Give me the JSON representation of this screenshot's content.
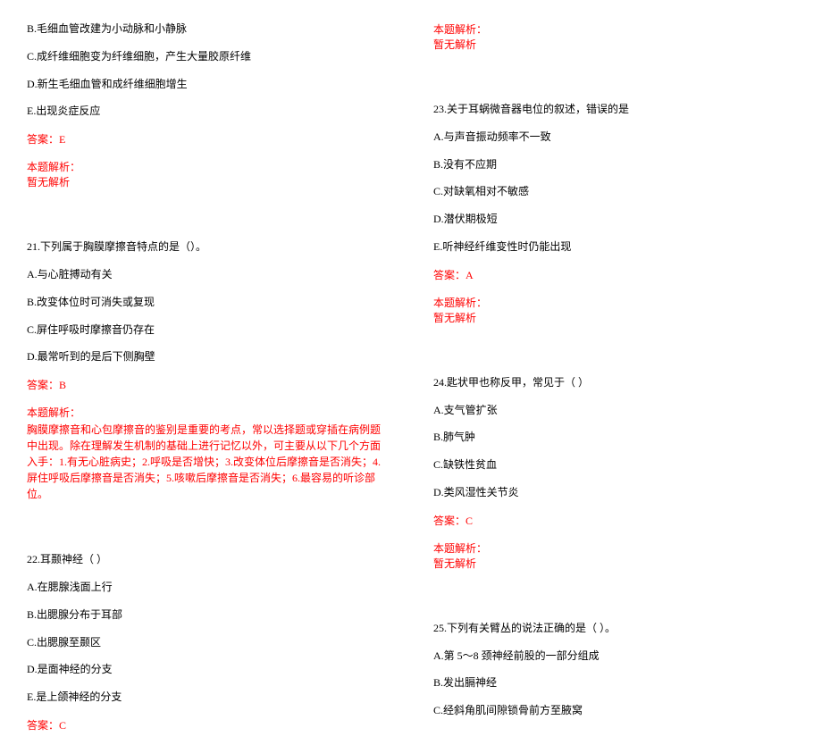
{
  "colors": {
    "text": "#000000",
    "answer": "#ff0000",
    "background": "#ffffff"
  },
  "typography": {
    "fontSize": 12,
    "fontFamily": "SimSun"
  },
  "left": {
    "q20_opts": {
      "b": "B.毛细血管改建为小动脉和小静脉",
      "c": "C.成纤维细胞变为纤维细胞，产生大量胶原纤维",
      "d": "D.新生毛细血管和成纤维细胞增生",
      "e": "E.出现炎症反应"
    },
    "q20_answer": "答案：E",
    "q20_explain_label": "本题解析：",
    "q20_explain_none": "暂无解析",
    "q21": {
      "stem": "21.下列属于胸膜摩擦音特点的是（）。",
      "a": "A.与心脏搏动有关",
      "b": "B.改变体位时可消失或复现",
      "c": "C.屏住呼吸时摩擦音仍存在",
      "d": "D.最常听到的是后下侧胸壁",
      "answer": "答案：B",
      "explain_label": "本题解析：",
      "explain_text": "胸膜摩擦音和心包摩擦音的鉴别是重要的考点，常以选择题或穿插在病例题中出现。除在理解发生机制的基础上进行记忆以外，可主要从以下几个方面入手：1.有无心脏病史；2.呼吸是否增快；3.改变体位后摩擦音是否消失；4.屏住呼吸后摩擦音是否消失；5.咳嗽后摩擦音是否消失；6.最容易的听诊部位。"
    },
    "q22": {
      "stem": "22.耳颞神经（ ）",
      "a": "A.在腮腺浅面上行",
      "b": "B.出腮腺分布于耳部",
      "c": "C.出腮腺至颞区",
      "d": "D.是面神经的分支",
      "e": "E.是上颌神经的分支",
      "answer": "答案：C"
    }
  },
  "right": {
    "q22_explain_label": "本题解析：",
    "q22_explain_none": "暂无解析",
    "q23": {
      "stem": "23.关于耳蜗微音器电位的叙述，错误的是",
      "a": "A.与声音振动频率不一致",
      "b": "B.没有不应期",
      "c": "C.对缺氧相对不敏感",
      "d": "D.潜伏期极短",
      "e": "E.听神经纤维变性时仍能出现",
      "answer": "答案：A",
      "explain_label": "本题解析：",
      "explain_none": "暂无解析"
    },
    "q24": {
      "stem": "24.匙状甲也称反甲，常见于（ ）",
      "a": "A.支气管扩张",
      "b": "B.肺气肿",
      "c": "C.缺铁性贫血",
      "d": "D.类风湿性关节炎",
      "answer": "答案：C",
      "explain_label": "本题解析：",
      "explain_none": "暂无解析"
    },
    "q25": {
      "stem": "25.下列有关臂丛的说法正确的是（ ）。",
      "a": "A.第 5～8 颈神经前股的一部分组成",
      "b": "B.发出膈神经",
      "c": "C.经斜角肌间隙锁骨前方至腋窝"
    }
  }
}
